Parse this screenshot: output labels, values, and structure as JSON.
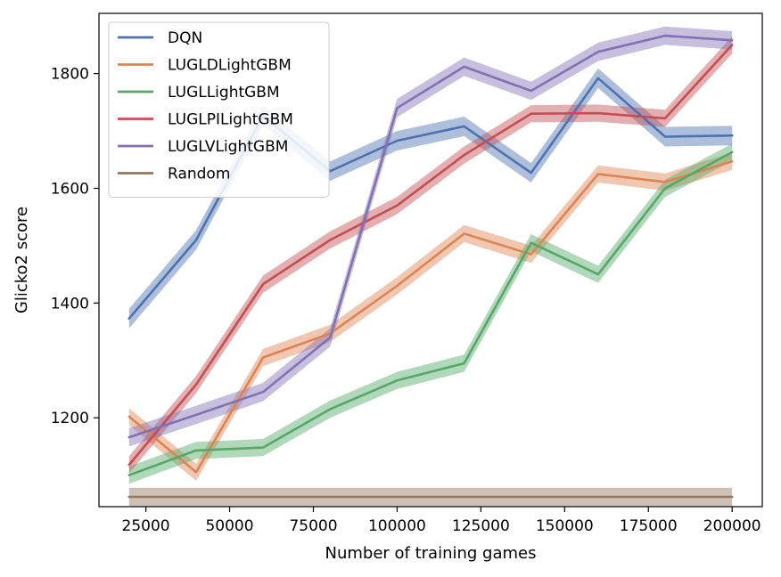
{
  "chart_data": {
    "type": "line",
    "xlabel": "Number of training games",
    "ylabel": "Glicko2 score",
    "xlim": [
      11000,
      209000
    ],
    "ylim": [
      1045,
      1905
    ],
    "xticks": [
      25000,
      50000,
      75000,
      100000,
      125000,
      150000,
      175000,
      200000
    ],
    "xtick_labels": [
      "25000",
      "50000",
      "75000",
      "100000",
      "125000",
      "150000",
      "175000",
      "200000"
    ],
    "yticks": [
      1200,
      1400,
      1600,
      1800
    ],
    "ytick_labels": [
      "1200",
      "1400",
      "1600",
      "1800"
    ],
    "grid": false,
    "legend_position": "top-left",
    "x": [
      20000,
      40000,
      60000,
      80000,
      100000,
      120000,
      140000,
      160000,
      180000,
      200000
    ],
    "series": [
      {
        "name": "DQN",
        "color": "#4c72b0",
        "values": [
          1373,
          1510,
          1727,
          1630,
          1683,
          1708,
          1627,
          1792,
          1690,
          1692
        ],
        "band": 17
      },
      {
        "name": "LUGLDLightGBM",
        "color": "#dd8452",
        "values": [
          1202,
          1105,
          1305,
          1347,
          1430,
          1521,
          1485,
          1625,
          1611,
          1647
        ],
        "band": 15
      },
      {
        "name": "LUGLLightGBM",
        "color": "#55a868",
        "values": [
          1100,
          1143,
          1148,
          1215,
          1265,
          1295,
          1505,
          1450,
          1600,
          1663
        ],
        "band": 15
      },
      {
        "name": "LUGLPILightGBM",
        "color": "#c44e52",
        "values": [
          1118,
          1258,
          1433,
          1510,
          1570,
          1658,
          1730,
          1731,
          1722,
          1850
        ],
        "band": 15
      },
      {
        "name": "LUGLVLightGBM",
        "color": "#8172b3",
        "values": [
          1166,
          1205,
          1245,
          1340,
          1740,
          1812,
          1770,
          1838,
          1866,
          1858
        ],
        "band": 16
      },
      {
        "name": "Random",
        "color": "#937860",
        "values": [
          1062,
          1062,
          1062,
          1062,
          1062,
          1062,
          1062,
          1062,
          1062,
          1062
        ],
        "band": 16
      }
    ]
  }
}
